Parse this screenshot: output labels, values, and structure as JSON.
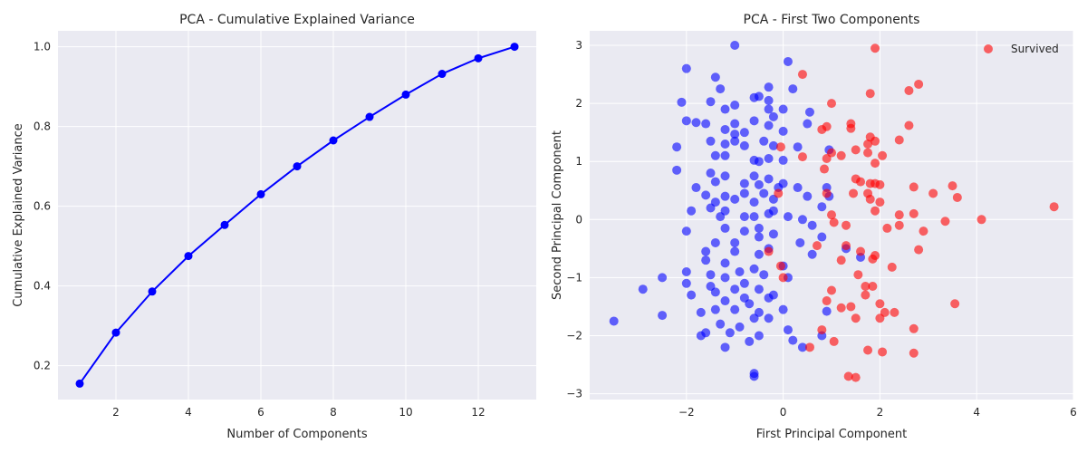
{
  "chart_data": [
    {
      "type": "line",
      "title": "PCA - Cumulative Explained Variance",
      "xlabel": "Number of Components",
      "ylabel": "Cumulative Explained Variance",
      "xlim": [
        0.4,
        13.6
      ],
      "ylim": [
        0.115,
        1.04
      ],
      "xticks": [
        2,
        4,
        6,
        8,
        10,
        12
      ],
      "yticks": [
        0.2,
        0.4,
        0.6,
        0.8,
        1.0
      ],
      "ytick_labels": [
        "0.2",
        "0.4",
        "0.6",
        "0.8",
        "1.0"
      ],
      "grid": true,
      "color": "#0000ff",
      "x": [
        1,
        2,
        3,
        4,
        5,
        6,
        7,
        8,
        9,
        10,
        11,
        12,
        13
      ],
      "y": [
        0.155,
        0.283,
        0.386,
        0.475,
        0.553,
        0.63,
        0.7,
        0.765,
        0.824,
        0.88,
        0.932,
        0.971,
        1.0
      ]
    },
    {
      "type": "scatter",
      "title": "PCA - First Two Components",
      "xlabel": "First Principal Component",
      "ylabel": "Second Principal Component",
      "xlim": [
        -4.0,
        6.0
      ],
      "ylim": [
        -3.1,
        3.25
      ],
      "xticks": [
        -2,
        0,
        2,
        4,
        6
      ],
      "yticks": [
        -3,
        -2,
        -1,
        0,
        1,
        2,
        3
      ],
      "grid": true,
      "legend": {
        "placement": "top-right",
        "entries": [
          {
            "name": "Survived",
            "color": "#ff0000"
          }
        ]
      },
      "series": [
        {
          "color": "#0000ff",
          "points": [
            [
              -1.0,
              3.0
            ],
            [
              0.1,
              2.72
            ],
            [
              -2.0,
              2.6
            ],
            [
              -1.4,
              2.45
            ],
            [
              0.2,
              2.25
            ],
            [
              -0.3,
              2.28
            ],
            [
              -1.3,
              2.25
            ],
            [
              -0.6,
              2.1
            ],
            [
              -0.3,
              2.05
            ],
            [
              -2.1,
              2.02
            ],
            [
              -1.5,
              2.03
            ],
            [
              -1.0,
              1.97
            ],
            [
              -0.5,
              2.12
            ],
            [
              -1.2,
              1.9
            ],
            [
              -0.3,
              1.9
            ],
            [
              0.0,
              1.9
            ],
            [
              -0.2,
              1.77
            ],
            [
              0.55,
              1.85
            ],
            [
              -2.0,
              1.7
            ],
            [
              -1.8,
              1.67
            ],
            [
              -1.6,
              1.65
            ],
            [
              -1.0,
              1.65
            ],
            [
              -0.6,
              1.7
            ],
            [
              -0.3,
              1.62
            ],
            [
              0.5,
              1.65
            ],
            [
              -1.2,
              1.55
            ],
            [
              -1.0,
              1.47
            ],
            [
              -0.8,
              1.5
            ],
            [
              0.0,
              1.52
            ],
            [
              -2.2,
              1.25
            ],
            [
              -1.5,
              1.35
            ],
            [
              -1.2,
              1.3
            ],
            [
              -1.0,
              1.35
            ],
            [
              -0.8,
              1.27
            ],
            [
              -0.4,
              1.35
            ],
            [
              -0.2,
              1.27
            ],
            [
              0.3,
              1.25
            ],
            [
              0.95,
              1.2
            ],
            [
              -1.4,
              1.1
            ],
            [
              -1.2,
              1.1
            ],
            [
              -0.6,
              1.02
            ],
            [
              -0.5,
              1.0
            ],
            [
              -0.3,
              1.05
            ],
            [
              0.0,
              1.02
            ],
            [
              -2.2,
              0.85
            ],
            [
              -1.5,
              0.8
            ],
            [
              -1.2,
              0.75
            ],
            [
              -0.6,
              0.75
            ],
            [
              -0.3,
              0.7
            ],
            [
              -1.4,
              0.65
            ],
            [
              -0.8,
              0.62
            ],
            [
              -0.5,
              0.6
            ],
            [
              0.0,
              0.62
            ],
            [
              0.9,
              0.55
            ],
            [
              -1.8,
              0.55
            ],
            [
              -1.6,
              0.42
            ],
            [
              -1.2,
              0.4
            ],
            [
              -0.8,
              0.45
            ],
            [
              -0.4,
              0.45
            ],
            [
              0.3,
              0.55
            ],
            [
              -1.4,
              0.3
            ],
            [
              -1.0,
              0.35
            ],
            [
              -0.6,
              0.3
            ],
            [
              -0.2,
              0.35
            ],
            [
              0.5,
              0.4
            ],
            [
              -1.5,
              0.2
            ],
            [
              -1.2,
              0.15
            ],
            [
              -0.8,
              0.05
            ],
            [
              -0.2,
              0.15
            ],
            [
              0.4,
              0.0
            ],
            [
              -1.9,
              0.15
            ],
            [
              -1.3,
              0.05
            ],
            [
              -0.6,
              0.05
            ],
            [
              -0.3,
              0.1
            ],
            [
              0.1,
              0.05
            ],
            [
              -2.0,
              -0.2
            ],
            [
              -1.2,
              -0.15
            ],
            [
              -0.8,
              -0.2
            ],
            [
              -0.5,
              -0.15
            ],
            [
              -0.2,
              -0.25
            ],
            [
              0.6,
              -0.1
            ],
            [
              0.8,
              -0.3
            ],
            [
              -1.4,
              -0.4
            ],
            [
              -1.0,
              -0.4
            ],
            [
              -0.5,
              -0.3
            ],
            [
              0.35,
              -0.4
            ],
            [
              -1.6,
              -0.55
            ],
            [
              -1.0,
              -0.55
            ],
            [
              -0.5,
              -0.6
            ],
            [
              -0.3,
              -0.5
            ],
            [
              0.6,
              -0.6
            ],
            [
              -1.6,
              -0.7
            ],
            [
              -1.2,
              -0.75
            ],
            [
              -0.6,
              -0.85
            ],
            [
              0.0,
              -0.8
            ],
            [
              -2.0,
              -0.9
            ],
            [
              -1.5,
              -0.95
            ],
            [
              -0.9,
              -0.9
            ],
            [
              -0.4,
              -0.95
            ],
            [
              -1.2,
              -1.0
            ],
            [
              -0.8,
              -1.1
            ],
            [
              0.1,
              -1.0
            ],
            [
              -1.5,
              -1.15
            ],
            [
              -1.0,
              -1.2
            ],
            [
              -0.5,
              -1.2
            ],
            [
              -0.2,
              -1.3
            ],
            [
              -1.9,
              -1.3
            ],
            [
              -1.4,
              -1.25
            ],
            [
              -0.8,
              -1.35
            ],
            [
              -0.3,
              -1.35
            ],
            [
              -1.2,
              -1.4
            ],
            [
              -0.7,
              -1.45
            ],
            [
              -1.4,
              -1.55
            ],
            [
              -1.0,
              -1.55
            ],
            [
              -0.5,
              -1.6
            ],
            [
              0.0,
              -1.55
            ],
            [
              -2.5,
              -1.65
            ],
            [
              -1.7,
              -1.6
            ],
            [
              -0.6,
              -1.7
            ],
            [
              -0.3,
              -1.7
            ],
            [
              -1.3,
              -1.8
            ],
            [
              -0.9,
              -1.85
            ],
            [
              0.1,
              -1.9
            ],
            [
              -1.6,
              -1.95
            ],
            [
              -1.1,
              -1.95
            ],
            [
              -0.5,
              -2.0
            ],
            [
              0.2,
              -2.08
            ],
            [
              -1.7,
              -2.0
            ],
            [
              -0.7,
              -2.1
            ],
            [
              0.8,
              -2.0
            ],
            [
              -1.2,
              -2.2
            ],
            [
              0.4,
              -2.2
            ],
            [
              -0.6,
              -2.65
            ],
            [
              -0.6,
              -2.7
            ],
            [
              -2.0,
              -1.1
            ],
            [
              -2.5,
              -1.0
            ],
            [
              -2.9,
              -1.2
            ],
            [
              -3.5,
              -1.75
            ],
            [
              0.9,
              -1.58
            ],
            [
              1.3,
              -0.5
            ],
            [
              1.6,
              -0.65
            ],
            [
              0.95,
              0.4
            ],
            [
              0.8,
              0.22
            ],
            [
              -0.1,
              0.55
            ]
          ]
        },
        {
          "name": "Survived",
          "color": "#ff0000",
          "points": [
            [
              1.9,
              2.95
            ],
            [
              0.4,
              2.5
            ],
            [
              2.8,
              2.33
            ],
            [
              2.6,
              2.22
            ],
            [
              1.8,
              2.17
            ],
            [
              1.0,
              2.0
            ],
            [
              1.4,
              1.65
            ],
            [
              2.6,
              1.62
            ],
            [
              0.8,
              1.55
            ],
            [
              0.9,
              1.6
            ],
            [
              1.4,
              1.57
            ],
            [
              2.4,
              1.37
            ],
            [
              1.8,
              1.42
            ],
            [
              1.75,
              1.3
            ],
            [
              1.9,
              1.35
            ],
            [
              1.0,
              1.15
            ],
            [
              1.2,
              1.1
            ],
            [
              1.5,
              1.2
            ],
            [
              1.75,
              1.15
            ],
            [
              2.05,
              1.1
            ],
            [
              0.4,
              1.08
            ],
            [
              0.9,
              1.05
            ],
            [
              1.9,
              0.97
            ],
            [
              0.85,
              0.87
            ],
            [
              1.5,
              0.7
            ],
            [
              1.6,
              0.65
            ],
            [
              1.8,
              0.62
            ],
            [
              1.9,
              0.62
            ],
            [
              2.0,
              0.6
            ],
            [
              2.7,
              0.56
            ],
            [
              3.1,
              0.45
            ],
            [
              3.5,
              0.58
            ],
            [
              3.6,
              0.38
            ],
            [
              1.45,
              0.45
            ],
            [
              1.75,
              0.45
            ],
            [
              1.8,
              0.35
            ],
            [
              2.0,
              0.3
            ],
            [
              0.9,
              0.45
            ],
            [
              1.9,
              0.15
            ],
            [
              2.4,
              0.08
            ],
            [
              2.7,
              0.1
            ],
            [
              3.35,
              -0.03
            ],
            [
              4.1,
              0.0
            ],
            [
              5.6,
              0.22
            ],
            [
              1.0,
              0.08
            ],
            [
              1.05,
              -0.05
            ],
            [
              1.3,
              -0.1
            ],
            [
              2.15,
              -0.15
            ],
            [
              2.4,
              -0.1
            ],
            [
              2.9,
              -0.2
            ],
            [
              0.7,
              -0.45
            ],
            [
              1.3,
              -0.45
            ],
            [
              1.6,
              -0.55
            ],
            [
              1.9,
              -0.62
            ],
            [
              2.8,
              -0.52
            ],
            [
              1.2,
              -0.7
            ],
            [
              1.85,
              -0.68
            ],
            [
              2.25,
              -0.82
            ],
            [
              0.0,
              -1.0
            ],
            [
              1.55,
              -0.95
            ],
            [
              1.0,
              -1.22
            ],
            [
              1.7,
              -1.15
            ],
            [
              1.85,
              -1.15
            ],
            [
              0.9,
              -1.4
            ],
            [
              1.2,
              -1.52
            ],
            [
              1.4,
              -1.5
            ],
            [
              1.7,
              -1.3
            ],
            [
              2.0,
              -1.45
            ],
            [
              2.3,
              -1.6
            ],
            [
              2.1,
              -1.6
            ],
            [
              3.55,
              -1.45
            ],
            [
              1.5,
              -1.7
            ],
            [
              2.0,
              -1.7
            ],
            [
              0.8,
              -1.9
            ],
            [
              2.7,
              -1.88
            ],
            [
              1.05,
              -2.1
            ],
            [
              1.75,
              -2.25
            ],
            [
              2.05,
              -2.28
            ],
            [
              2.7,
              -2.3
            ],
            [
              0.55,
              -2.2
            ],
            [
              1.35,
              -2.7
            ],
            [
              1.5,
              -2.72
            ],
            [
              -0.3,
              -0.55
            ],
            [
              -0.05,
              -0.8
            ],
            [
              -0.1,
              0.45
            ],
            [
              -0.05,
              1.25
            ]
          ]
        }
      ]
    }
  ]
}
